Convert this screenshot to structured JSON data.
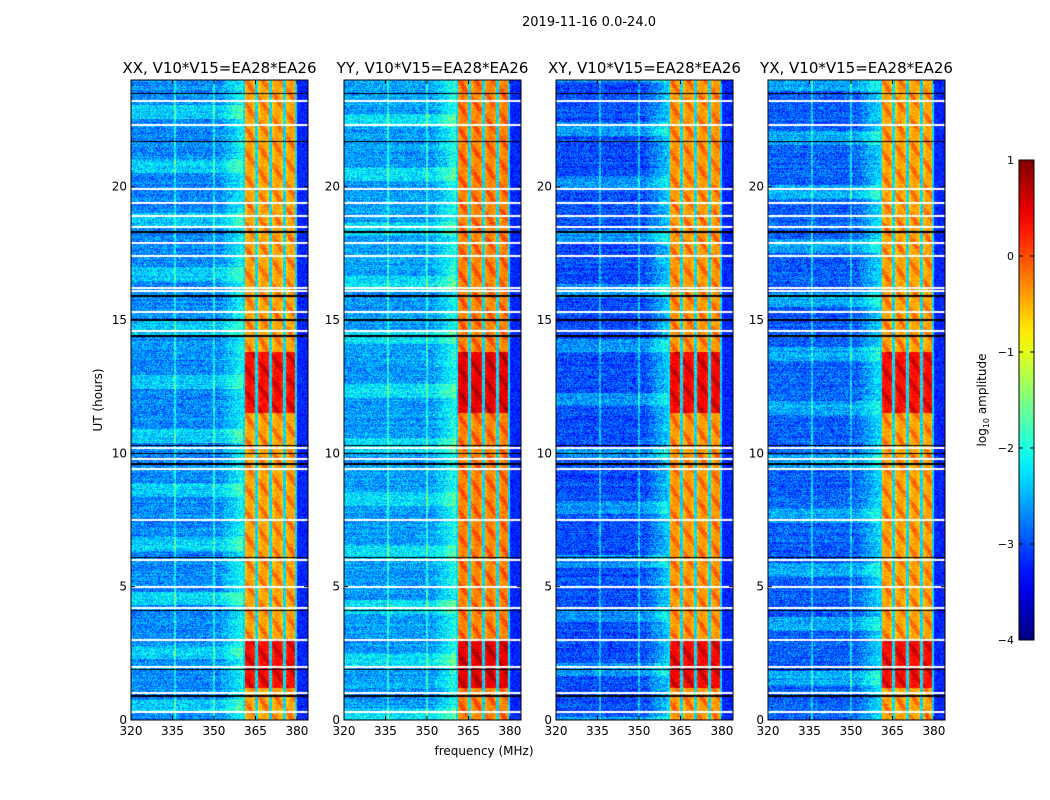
{
  "chart_data": {
    "type": "heatmap",
    "suptitle": "2019-11-16 0.0-24.0",
    "xlabel": "frequency (MHz)",
    "ylabel": "UT (hours)",
    "xlim": [
      320,
      384
    ],
    "ylim": [
      0,
      24
    ],
    "xticks": [
      "320",
      "335",
      "350",
      "365",
      "380"
    ],
    "yticks": [
      "0",
      "5",
      "10",
      "15",
      "20"
    ],
    "panels": [
      {
        "title": "XX, V10*V15=EA28*EA26",
        "strength": 0.0,
        "bg": -2.7
      },
      {
        "title": "YY, V10*V15=EA28*EA26",
        "strength": 0.15,
        "bg": -2.6
      },
      {
        "title": "XY, V10*V15=EA28*EA26",
        "strength": 0.05,
        "bg": -3.0
      },
      {
        "title": "YX, V10*V15=EA28*EA26",
        "strength": 0.0,
        "bg": -2.9
      }
    ],
    "band_mhz": [
      360.5,
      380
    ],
    "subband_gaps_mhz": [
      365.5,
      370.5,
      375.5
    ],
    "strong_intervals_hours": [
      [
        1.2,
        3.0
      ],
      [
        11.5,
        13.8
      ]
    ],
    "flagged_hours": [
      0.3,
      1.0,
      2.0,
      3.0,
      4.2,
      5.0,
      6.0,
      7.5,
      9.4,
      9.8,
      10.2,
      14.6,
      15.3,
      16.1,
      16.2,
      17.4,
      17.9,
      18.5,
      18.9,
      19.4,
      19.9,
      22.3,
      23.2
    ],
    "dark_lines_hours": [
      0.9,
      1.9,
      4.1,
      6.1,
      9.6,
      10.0,
      10.3,
      14.4,
      15.0,
      15.9,
      18.3,
      21.7,
      23.5
    ],
    "colorbar": {
      "label": "log10 amplitude",
      "label_main": "log",
      "label_sub": "10",
      "label_rest": " amplitude",
      "range": [
        -4,
        1
      ],
      "ticks": [
        "1",
        "0",
        "−1",
        "−2",
        "−3",
        "−4"
      ],
      "colormap": "jet"
    }
  }
}
